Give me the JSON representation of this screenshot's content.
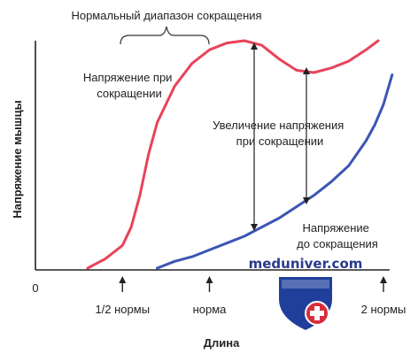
{
  "chart_data": {
    "type": "line",
    "xlabel": "Длина",
    "ylabel": "Напряжение мышцы",
    "x_origin_label": "0",
    "x_ticks": [
      {
        "x": 0.5,
        "label": "1/2 нормы"
      },
      {
        "x": 1.0,
        "label": "норма"
      },
      {
        "x": 2.0,
        "label": "2 нормы"
      }
    ],
    "xlim": [
      0,
      2.1
    ],
    "ylim": [
      0,
      1
    ],
    "grid": false,
    "series": [
      {
        "name": "Напряжение при сокращении",
        "color": "#e8435a",
        "x": [
          0.3,
          0.4,
          0.5,
          0.55,
          0.6,
          0.65,
          0.7,
          0.8,
          0.9,
          1.0,
          1.1,
          1.2,
          1.3,
          1.4,
          1.5,
          1.6,
          1.7,
          1.8,
          1.9,
          1.97
        ],
        "y": [
          0.0,
          0.04,
          0.1,
          0.18,
          0.32,
          0.5,
          0.64,
          0.8,
          0.9,
          0.96,
          0.99,
          1.0,
          0.98,
          0.92,
          0.87,
          0.86,
          0.88,
          0.91,
          0.96,
          1.0
        ]
      },
      {
        "name": "Напряжение до сокращения",
        "color": "#3b55b5",
        "x": [
          0.7,
          0.8,
          0.9,
          1.0,
          1.1,
          1.2,
          1.3,
          1.4,
          1.5,
          1.6,
          1.7,
          1.8,
          1.9,
          1.95,
          2.0,
          2.05
        ],
        "y": [
          0.0,
          0.03,
          0.05,
          0.08,
          0.11,
          0.14,
          0.18,
          0.22,
          0.27,
          0.32,
          0.38,
          0.45,
          0.56,
          0.63,
          0.72,
          0.85
        ]
      }
    ],
    "annotations": {
      "normal_range": "Нормальный диапазон сокращения",
      "active_label_line1": "Напряжение при",
      "active_label_line2": "сокращении",
      "increase_label_line1": "Увеличение напряжения",
      "increase_label_line2": "при сокращении",
      "passive_label_line1": "Напряжение",
      "passive_label_line2": "до сокращения"
    }
  },
  "watermark": {
    "text": "meduniver.com",
    "logo_colors": {
      "shield_blue": "#1f3f9a",
      "shield_red": "#d92c3a",
      "cross": "#ffffff"
    }
  }
}
